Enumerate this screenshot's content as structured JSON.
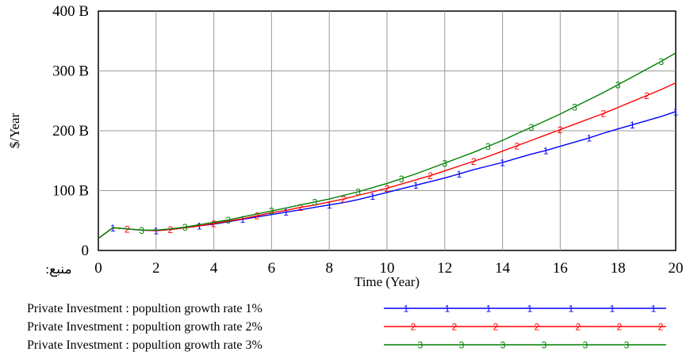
{
  "chart_data": {
    "type": "line",
    "xlabel": "Time (Year)",
    "ylabel": "$/Year",
    "source_label": "منبع:",
    "xlim": [
      0,
      20
    ],
    "ylim": [
      0,
      400
    ],
    "x_ticks": [
      0,
      2,
      4,
      6,
      8,
      10,
      12,
      14,
      16,
      18,
      20
    ],
    "y_ticks": [
      {
        "value": 0,
        "label": "0"
      },
      {
        "value": 100,
        "label": "100 B"
      },
      {
        "value": 200,
        "label": "200 B"
      },
      {
        "value": 300,
        "label": "300 B"
      },
      {
        "value": 400,
        "label": "400 B"
      }
    ],
    "grid": true,
    "legend_position": "bottom",
    "x": [
      0,
      0.5,
      1,
      1.5,
      2,
      2.5,
      3,
      3.5,
      4,
      4.5,
      5,
      5.5,
      6,
      6.5,
      7,
      7.5,
      8,
      8.5,
      9,
      9.5,
      10,
      10.5,
      11,
      11.5,
      12,
      12.5,
      13,
      13.5,
      14,
      14.5,
      15,
      15.5,
      16,
      16.5,
      17,
      17.5,
      18,
      18.5,
      19,
      19.5,
      20
    ],
    "series": [
      {
        "name": "Private Investment : popultion growth rate 1%",
        "marker": "1",
        "color": "#0000ff",
        "values": [
          20,
          38,
          36,
          34,
          33,
          35,
          38,
          41,
          44,
          48,
          52,
          56,
          60,
          64,
          68,
          72,
          76,
          80,
          85,
          91,
          97,
          103,
          109,
          115,
          121,
          128,
          135,
          141,
          147,
          154,
          161,
          167,
          174,
          181,
          188,
          196,
          203,
          210,
          217,
          224,
          232
        ]
      },
      {
        "name": "Private Investment : popultion growth rate 2%",
        "marker": "2",
        "color": "#ff0000",
        "values": [
          20,
          38,
          36,
          34,
          33,
          35,
          38,
          41,
          45,
          49,
          53,
          58,
          63,
          67,
          72,
          76,
          81,
          86,
          92,
          98,
          104,
          111,
          118,
          125,
          133,
          141,
          149,
          157,
          166,
          175,
          184,
          193,
          202,
          211,
          220,
          229,
          239,
          249,
          259,
          269,
          280
        ]
      },
      {
        "name": "Private Investment : popultion growth rate 3%",
        "marker": "3",
        "color": "#008000",
        "values": [
          20,
          38,
          36,
          34,
          34,
          36,
          39,
          43,
          47,
          51,
          56,
          61,
          66,
          71,
          76,
          81,
          86,
          92,
          98,
          105,
          112,
          120,
          128,
          137,
          146,
          155,
          164,
          174,
          184,
          195,
          206,
          217,
          228,
          240,
          252,
          264,
          277,
          290,
          303,
          316,
          330
        ]
      }
    ]
  }
}
